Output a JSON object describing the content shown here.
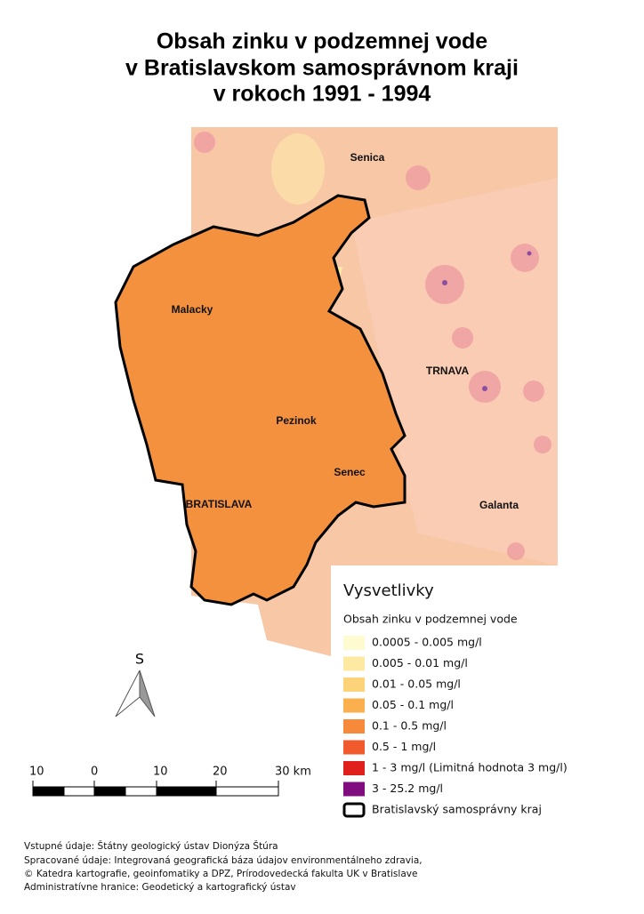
{
  "title": [
    "Obsah zinku v podzemnej vode",
    "v Bratislavskom samosprávnom kraji",
    "v rokoch 1991 - 1994"
  ],
  "places": [
    "Senica",
    "Malacky",
    "TRNAVA",
    "Pezinok",
    "Senec",
    "BRATISLAVA",
    "Galanta"
  ],
  "legend": {
    "title": "Vysvetlivky",
    "subtitle": "Obsah zinku v podzemnej vode",
    "items": [
      {
        "label": "0.0005 - 0.005 mg/l",
        "color": "#fefbd0"
      },
      {
        "label": "0.005 - 0.01 mg/l",
        "color": "#fde9a2"
      },
      {
        "label": "0.01 - 0.05 mg/l",
        "color": "#fdd37a"
      },
      {
        "label": "0.05 - 0.1 mg/l",
        "color": "#fbb04f"
      },
      {
        "label": "0.1 - 0.5 mg/l",
        "color": "#f68a3a"
      },
      {
        "label": "0.5 - 1 mg/l",
        "color": "#f05a2c"
      },
      {
        "label": "1 - 3 mg/l (Limitná hodnota 3 mg/l)",
        "color": "#e0201c"
      },
      {
        "label": "3 - 25.2 mg/l",
        "color": "#800d80"
      }
    ],
    "boundary": "Bratislavský samosprávny kraj"
  },
  "north": "S",
  "scale_bar": [
    "10",
    "0",
    "10",
    "20",
    "30 km"
  ],
  "footer": [
    "Vstupné údaje: Štátny geologický ústav Dionýza Štúra",
    "Spracované údaje: Integrovaná geografická báza údajov environmentálneho zdravia,",
    "© Katedra kartografie, geoinfomatiky a DPZ, Prírodovedecká fakulta UK v Bratislave",
    "Administratívne hranice: Geodetický a kartografický ústav"
  ]
}
